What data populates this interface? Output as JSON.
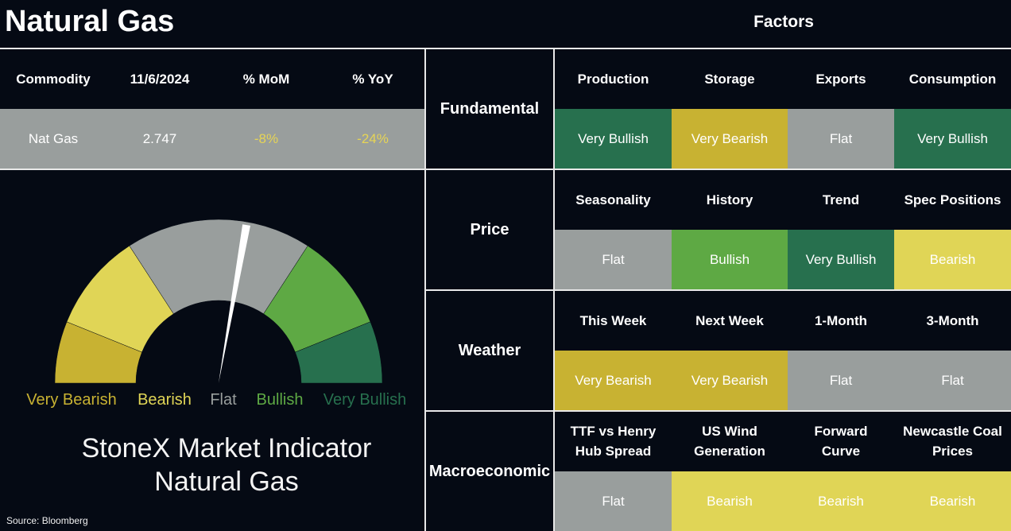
{
  "page_title": "Natural Gas",
  "factors_title": "Factors",
  "colors": {
    "very_bullish": "#27704e",
    "bullish": "#5ea944",
    "flat": "#999e9d",
    "bearish": "#e0d556",
    "very_bearish": "#c8b232",
    "background": "#050a14"
  },
  "commodity_table": {
    "headers": [
      "Commodity",
      "11/6/2024",
      "% MoM",
      "% YoY"
    ],
    "row": [
      "Nat Gas",
      "2.747",
      "-8%",
      "-24%"
    ]
  },
  "gauge": {
    "needle_position": "Flat",
    "legend": [
      "Very Bearish",
      "Bearish",
      "Flat",
      "Bullish",
      "Very Bullish"
    ],
    "caption_line1": "StoneX Market Indicator",
    "caption_line2": "Natural Gas"
  },
  "source": "Source: Bloomberg",
  "factor_groups": [
    {
      "category": "Fundamental",
      "factors": [
        {
          "label": "Production",
          "value": "Very Bullish"
        },
        {
          "label": "Storage",
          "value": "Very Bearish"
        },
        {
          "label": "Exports",
          "value": "Flat"
        },
        {
          "label": "Consumption",
          "value": "Very Bullish"
        }
      ]
    },
    {
      "category": "Price",
      "factors": [
        {
          "label": "Seasonality",
          "value": "Flat"
        },
        {
          "label": "History",
          "value": "Bullish"
        },
        {
          "label": "Trend",
          "value": "Very Bullish"
        },
        {
          "label": "Spec Positions",
          "value": "Bearish"
        }
      ]
    },
    {
      "category": "Weather",
      "factors": [
        {
          "label": "This Week",
          "value": "Very Bearish"
        },
        {
          "label": "Next Week",
          "value": "Very Bearish"
        },
        {
          "label": "1-Month",
          "value": "Flat"
        },
        {
          "label": "3-Month",
          "value": "Flat"
        }
      ]
    },
    {
      "category": "Macroeconomic",
      "factors": [
        {
          "label": "TTF vs Henry Hub Spread",
          "value": "Flat"
        },
        {
          "label": "US Wind Generation",
          "value": "Bearish"
        },
        {
          "label": "Forward Curve",
          "value": "Bearish"
        },
        {
          "label": "Newcastle Coal Prices",
          "value": "Bearish"
        }
      ]
    }
  ]
}
